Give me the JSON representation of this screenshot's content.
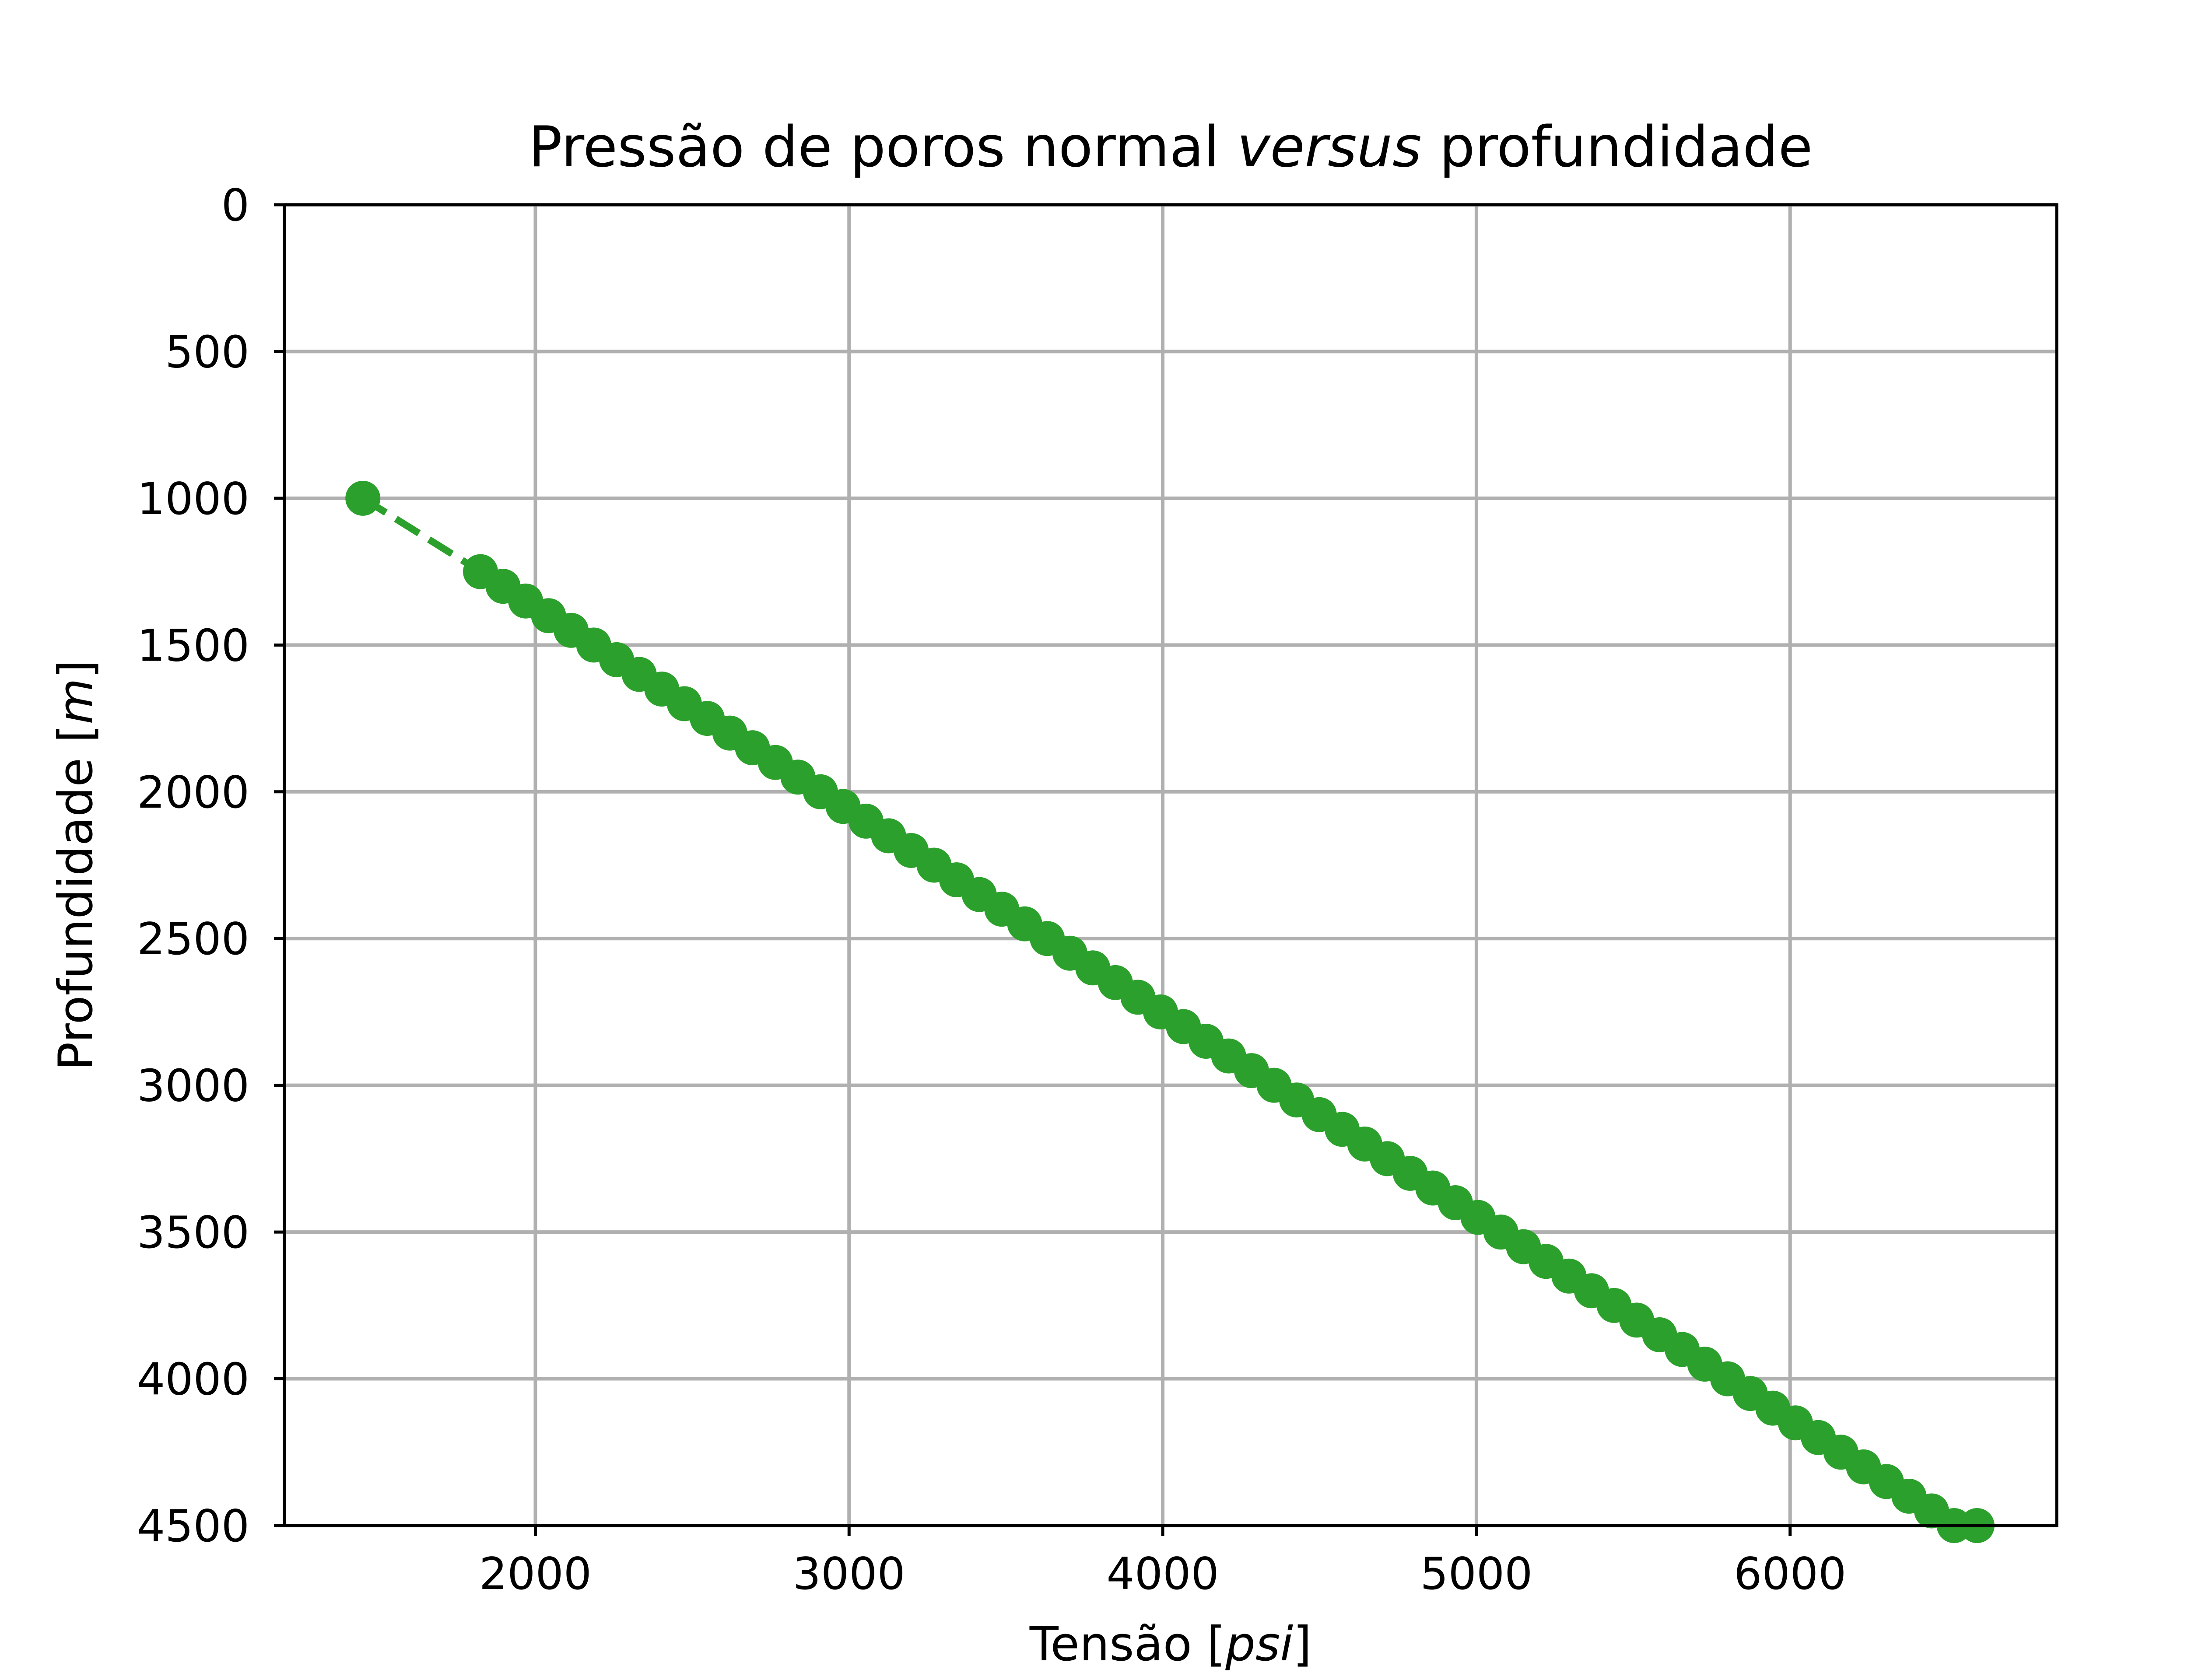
{
  "chart_data": {
    "type": "line",
    "title": {
      "parts": [
        {
          "text": "Pressão de poros normal ",
          "italic": false
        },
        {
          "text": "versus",
          "italic": true
        },
        {
          "text": " profundidade",
          "italic": false
        }
      ]
    },
    "xlabel": {
      "parts": [
        {
          "text": "Tensão [",
          "italic": false
        },
        {
          "text": "psi",
          "italic": true
        },
        {
          "text": "]",
          "italic": false
        }
      ]
    },
    "ylabel": {
      "parts": [
        {
          "text": "Profundidade [",
          "italic": false
        },
        {
          "text": "m",
          "italic": true
        },
        {
          "text": "]",
          "italic": false
        }
      ]
    },
    "xlim": [
      1200,
      6850
    ],
    "ylim": [
      4500,
      0
    ],
    "y_inverted": true,
    "grid": true,
    "xticks": [
      "2000",
      "3000",
      "4000",
      "5000",
      "6000"
    ],
    "yticks": [
      "0",
      "500",
      "1000",
      "1500",
      "2000",
      "2500",
      "3000",
      "3500",
      "4000",
      "4500"
    ],
    "color": "#2ca02c",
    "line_style": "dashed",
    "marker": "circle",
    "series": [
      {
        "x": [
          1450,
          1825,
          1897,
          1969,
          2042,
          2114,
          2186,
          2259,
          2331,
          2403,
          2475,
          2548,
          2620,
          2692,
          2765,
          2837,
          2909,
          2981,
          3054,
          3126,
          3198,
          3271,
          3343,
          3415,
          3487,
          3560,
          3632,
          3704,
          3777,
          3849,
          3921,
          3993,
          4066,
          4138,
          4210,
          4283,
          4355,
          4427,
          4499,
          4572,
          4644,
          4716,
          4789,
          4861,
          4933,
          5005,
          5078,
          5150,
          5222,
          5295,
          5367,
          5439,
          5511,
          5584,
          5656,
          5728,
          5801,
          5873,
          5945,
          6017,
          6090,
          6162,
          6234,
          6307,
          6379,
          6451,
          6523,
          6596
        ],
        "y": [
          1000,
          1250,
          1300,
          1350,
          1400,
          1450,
          1500,
          1550,
          1600,
          1650,
          1700,
          1750,
          1800,
          1850,
          1900,
          1950,
          2000,
          2050,
          2100,
          2150,
          2200,
          2250,
          2300,
          2350,
          2400,
          2450,
          2500,
          2550,
          2600,
          2650,
          2700,
          2750,
          2800,
          2850,
          2900,
          2950,
          3000,
          3050,
          3100,
          3150,
          3200,
          3250,
          3300,
          3350,
          3400,
          3450,
          3500,
          3550,
          3600,
          3650,
          3700,
          3750,
          3800,
          3850,
          3900,
          3950,
          4000,
          4050,
          4100,
          4150,
          4200,
          4250,
          4300,
          4350,
          4400,
          4450,
          4500,
          4500
        ]
      }
    ]
  }
}
